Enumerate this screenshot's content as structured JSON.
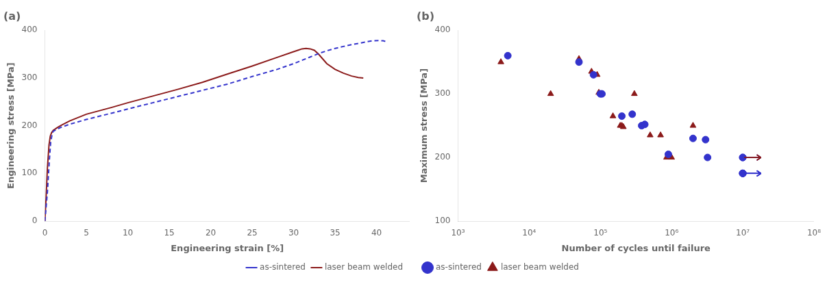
{
  "chart_data": [
    {
      "type": "line",
      "title": "(a)",
      "x_label": "Engineering strain [%]",
      "y_label": "Engineering stress [MPa]",
      "xlim": [
        0,
        44
      ],
      "xticks": [
        0,
        5,
        10,
        15,
        20,
        25,
        30,
        35,
        40
      ],
      "ylim": [
        0,
        400
      ],
      "yticks": [
        0,
        100,
        200,
        300,
        400
      ],
      "grid": false,
      "legend": "lower right",
      "series": [
        {
          "name": "as-sintered",
          "color": "#3333cc",
          "line_style": "dashed",
          "x": [
            0.0,
            0.3,
            0.55,
            0.7,
            0.85,
            1.0,
            1.5,
            2.0,
            3.0,
            5.0,
            8.0,
            10.0,
            13.0,
            16.0,
            19.0,
            22.0,
            25.0,
            28.0,
            30.0,
            31.0,
            32.0,
            33.0,
            34.0,
            35.0,
            36.0,
            37.0,
            38.0,
            38.8,
            39.5,
            40.2,
            40.8,
            41.2
          ],
          "values": [
            0.0,
            60.0,
            130.0,
            165.0,
            180.0,
            188.0,
            193.0,
            197.0,
            203.0,
            213.0,
            226.0,
            235.0,
            248.0,
            261.0,
            274.0,
            287.0,
            303.0,
            318.0,
            330.0,
            337.0,
            344.0,
            351.0,
            357.0,
            362.0,
            366.0,
            370.0,
            373.0,
            376.0,
            378.0,
            378.5,
            378.0,
            376.0
          ]
        },
        {
          "name": "laser beam welded",
          "color": "#8B1A1A",
          "line_style": "solid",
          "x": [
            0.0,
            0.15,
            0.3,
            0.5,
            0.65,
            0.8,
            1.0,
            1.5,
            2.0,
            3.0,
            5.0,
            8.0,
            10.0,
            13.0,
            16.0,
            19.0,
            22.0,
            25.0,
            28.0,
            30.0,
            30.5,
            31.0,
            31.5,
            32.0,
            32.5,
            33.0,
            33.5,
            34.0,
            35.0,
            36.0,
            37.0,
            37.8,
            38.4
          ],
          "values": [
            0.0,
            50.0,
            110.0,
            160.0,
            178.0,
            185.0,
            190.0,
            196.0,
            201.0,
            210.0,
            224.0,
            238.0,
            248.0,
            262.0,
            276.0,
            291.0,
            308.0,
            325.0,
            343.0,
            355.0,
            358.0,
            361.0,
            362.0,
            361.0,
            358.0,
            350.0,
            340.0,
            330.0,
            318.0,
            310.0,
            304.0,
            301.0,
            300.0
          ]
        }
      ]
    },
    {
      "type": "scatter",
      "title": "(b)",
      "x_label": "Number of cycles until failure",
      "y_label": "Maximum stress [MPa]",
      "log": "x",
      "xlim": [
        1000,
        100000000
      ],
      "xticks": [
        {
          "value": 1000,
          "label": "10³"
        },
        {
          "value": 10000,
          "label": "10⁴"
        },
        {
          "value": 100000,
          "label": "10⁵"
        },
        {
          "value": 1000000,
          "label": "10⁶"
        },
        {
          "value": 10000000,
          "label": "10⁷"
        },
        {
          "value": 100000000,
          "label": "10⁸"
        }
      ],
      "ylim": [
        100,
        400
      ],
      "yticks": [
        100,
        200,
        300,
        400
      ],
      "grid": false,
      "legend": "lower left",
      "runout_x": [
        10500000,
        18000000
      ],
      "series": [
        {
          "name": "as-sintered",
          "color": "#3333cc",
          "marker": "circle",
          "x": [
            5000,
            50000,
            80000,
            100000,
            105000,
            200000,
            280000,
            380000,
            420000,
            900000,
            2000000,
            3000000,
            3200000,
            10000000,
            10000000,
            10000000,
            10000000,
            10000000,
            10000000
          ],
          "values": [
            360,
            350,
            330,
            300,
            300,
            265,
            268,
            250,
            252,
            205,
            230,
            228,
            200,
            200,
            200,
            175,
            175,
            175,
            175
          ],
          "runout_y": [
            200,
            200,
            175,
            175,
            175,
            175
          ]
        },
        {
          "name": "laser beam welded",
          "color": "#8B1A1A",
          "marker": "triangle",
          "x": [
            4000,
            20000,
            50000,
            75000,
            90000,
            95000,
            105000,
            150000,
            190000,
            200000,
            210000,
            300000,
            500000,
            700000,
            850000,
            1000000,
            2000000,
            10000000,
            10000000
          ],
          "values": [
            350,
            300,
            355,
            335,
            330,
            302,
            300,
            265,
            250,
            250,
            248,
            300,
            235,
            235,
            200,
            200,
            250,
            200,
            200
          ],
          "runout_y": [
            200,
            200
          ]
        }
      ]
    }
  ]
}
